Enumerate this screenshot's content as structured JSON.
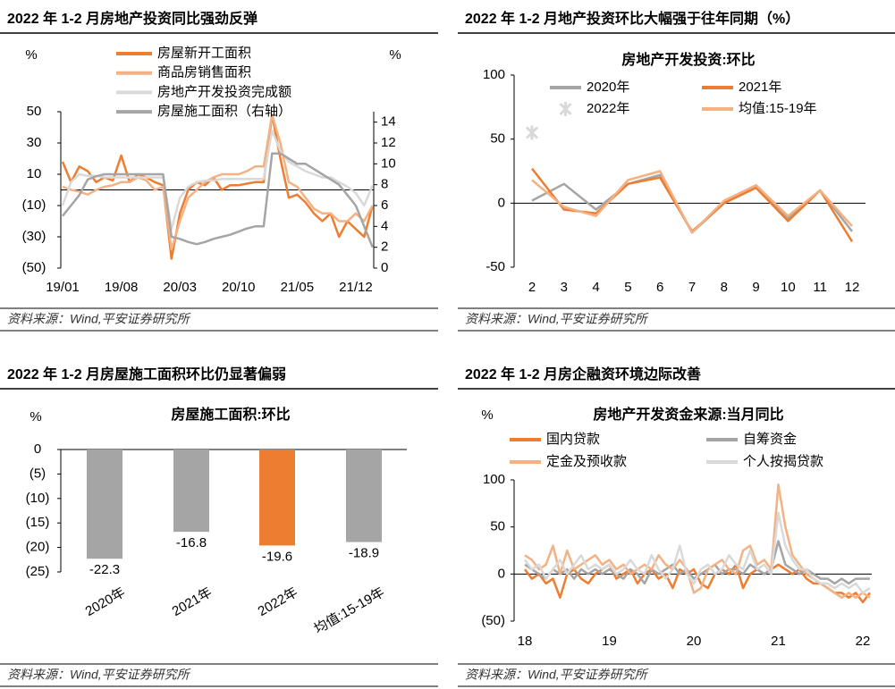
{
  "chart_data": [
    {
      "type": "line",
      "title": "2022 年 1-2 月房地产投资同比强劲反弹",
      "source": "资料来源：Wind,平安证券研究所",
      "ylabel": "%",
      "y2label": "%",
      "negative_label_color": "#e8413b",
      "categories": [
        "19/01",
        null,
        null,
        null,
        null,
        null,
        null,
        "19/08",
        null,
        null,
        null,
        null,
        null,
        null,
        "20/03",
        null,
        null,
        null,
        null,
        null,
        null,
        "20/10",
        null,
        null,
        null,
        null,
        null,
        null,
        "21/05",
        null,
        null,
        null,
        null,
        null,
        null,
        "21/12",
        null,
        null
      ],
      "series": [
        {
          "name": "房屋新开工面积",
          "color": "#ed7d31",
          "values": [
            18,
            5,
            15,
            12,
            5,
            8,
            6,
            22,
            5,
            10,
            8,
            5,
            3,
            -44,
            -15,
            0,
            5,
            3,
            8,
            0,
            3,
            3,
            4,
            5,
            5,
            48,
            20,
            -5,
            -3,
            -8,
            -15,
            -20,
            -15,
            -30,
            -20,
            -25,
            -30,
            -10
          ]
        },
        {
          "name": "商品房销售面积",
          "color": "#f4b183",
          "values": [
            2,
            0,
            -1,
            -3,
            0,
            2,
            3,
            5,
            5,
            8,
            6,
            0,
            2,
            -38,
            -20,
            -5,
            0,
            5,
            8,
            10,
            10,
            10,
            12,
            15,
            15,
            48,
            30,
            5,
            2,
            -5,
            -12,
            -15,
            -15,
            -20,
            -20,
            -15,
            -20,
            -10
          ]
        },
        {
          "name": "房地产开发投资完成额",
          "color": "#d9d9d9",
          "values": [
            -10,
            5,
            10,
            9,
            9,
            8,
            8,
            8,
            8,
            8,
            8,
            8,
            8,
            -25,
            -5,
            2,
            5,
            6,
            6,
            7,
            7,
            7,
            7,
            7,
            7,
            38,
            25,
            18,
            15,
            12,
            10,
            8,
            8,
            5,
            2,
            -2,
            -10,
            3
          ]
        },
        {
          "name": "房屋施工面积（右轴）",
          "color": "#a5a5a5",
          "axis": "y2",
          "values": [
            5,
            6,
            7,
            8.5,
            8.8,
            9,
            9,
            9,
            9,
            9,
            9,
            9,
            9,
            3,
            2.8,
            2.5,
            2.3,
            2.5,
            2.8,
            3,
            3.2,
            3.5,
            3.8,
            4,
            4,
            11,
            11,
            10.5,
            10,
            10,
            9.5,
            9,
            8.5,
            8,
            7,
            6,
            4,
            2
          ]
        }
      ],
      "ylim": [
        -50,
        50
      ],
      "yticks": [
        50,
        30,
        10,
        {
          "value": -10,
          "label": "(10)"
        },
        {
          "value": -30,
          "label": "(30)"
        },
        {
          "value": -50,
          "label": "(50)"
        }
      ],
      "y2lim": [
        0,
        15
      ],
      "y2ticks": [
        0,
        2,
        4,
        6,
        8,
        10,
        12,
        14
      ]
    },
    {
      "type": "line",
      "title": "2022 年 1-2 月地产投资环比大幅强于往年同期（%）",
      "subtitle": "房地产开发投资:环比",
      "source": "资料来源：Wind,平安证券研究所",
      "categories": [
        "2",
        "3",
        "4",
        "5",
        "6",
        "7",
        "8",
        "9",
        "10",
        "11",
        "12"
      ],
      "series": [
        {
          "name": "2020年",
          "color": "#a5a5a5",
          "values": [
            2,
            15,
            -5,
            15,
            22,
            -23,
            0,
            14,
            -12,
            10,
            -22
          ]
        },
        {
          "name": "2021年",
          "color": "#ed7d31",
          "values": [
            27,
            -5,
            -8,
            15,
            20,
            -22,
            0,
            12,
            -14,
            10,
            -30
          ]
        },
        {
          "name": "2022年",
          "color": "#d9d9d9",
          "marker": "x",
          "values": [
            55,
            null,
            null,
            null,
            null,
            null,
            null,
            null,
            null,
            null,
            null
          ]
        },
        {
          "name": "均值:15-19年",
          "color": "#f4b183",
          "values": [
            18,
            -3,
            -10,
            18,
            25,
            -23,
            2,
            14,
            -10,
            10,
            -18
          ]
        }
      ],
      "ylim": [
        -50,
        100
      ],
      "yticks": [
        100,
        50,
        0,
        -50
      ]
    },
    {
      "type": "bar",
      "title": "2022 年 1-2 月房屋施工面积环比仍显著偏弱",
      "subtitle": "房屋施工面积:环比",
      "source": "资料来源：Wind,平安证券研究所",
      "ylabel": "%",
      "negative_label_color": "#e8413b",
      "value_label_color": "#e8413b",
      "categories": [
        "2020年",
        "2021年",
        "2022年",
        "均值:15-19年"
      ],
      "values": [
        -22.3,
        -16.8,
        -19.6,
        -18.9
      ],
      "colors": [
        "#a5a5a5",
        "#a5a5a5",
        "#ed7d31",
        "#a5a5a5"
      ],
      "ylim": [
        -25,
        0
      ],
      "yticks": [
        0,
        {
          "value": -5,
          "label": "(5)"
        },
        {
          "value": -10,
          "label": "(10)"
        },
        {
          "value": -15,
          "label": "(15)"
        },
        {
          "value": -20,
          "label": "(20)"
        },
        {
          "value": -25,
          "label": "(25)"
        }
      ]
    },
    {
      "type": "line",
      "title": "2022 年 1-2 月房企融资环境边际改善",
      "subtitle": "房地产开发资金来源:当月同比",
      "source": "资料来源：Wind,平安证券研究所",
      "ylabel": "%",
      "negative_label_color": "#e8413b",
      "categories": [
        "18",
        null,
        null,
        null,
        null,
        null,
        null,
        null,
        null,
        null,
        null,
        null,
        "19",
        null,
        null,
        null,
        null,
        null,
        null,
        null,
        null,
        null,
        null,
        null,
        "20",
        null,
        null,
        null,
        null,
        null,
        null,
        null,
        null,
        null,
        null,
        null,
        "21",
        null,
        null,
        null,
        null,
        null,
        null,
        null,
        null,
        null,
        null,
        null,
        "22",
        null
      ],
      "series": [
        {
          "name": "国内贷款",
          "color": "#ed7d31",
          "values": [
            5,
            -5,
            0,
            -10,
            -5,
            -25,
            0,
            5,
            -5,
            -10,
            0,
            5,
            10,
            -5,
            0,
            5,
            -10,
            0,
            5,
            -5,
            0,
            -15,
            5,
            0,
            5,
            -10,
            -15,
            0,
            5,
            0,
            10,
            -15,
            0,
            5,
            0,
            5,
            10,
            5,
            0,
            5,
            -5,
            -10,
            -10,
            -15,
            -20,
            -20,
            -25,
            -20,
            -30,
            -20
          ]
        },
        {
          "name": "自筹资金",
          "color": "#a5a5a5",
          "values": [
            10,
            5,
            0,
            -5,
            5,
            0,
            5,
            -5,
            5,
            0,
            5,
            0,
            5,
            0,
            -5,
            5,
            0,
            -10,
            5,
            0,
            5,
            10,
            0,
            5,
            -5,
            0,
            5,
            10,
            0,
            5,
            5,
            0,
            10,
            5,
            0,
            5,
            35,
            10,
            5,
            0,
            5,
            0,
            -5,
            -5,
            -10,
            -5,
            -10,
            -5,
            -5,
            -5
          ]
        },
        {
          "name": "定金及预收款",
          "color": "#f4b183",
          "values": [
            20,
            15,
            5,
            10,
            30,
            0,
            25,
            5,
            10,
            15,
            20,
            10,
            15,
            5,
            10,
            0,
            5,
            10,
            5,
            20,
            10,
            5,
            15,
            5,
            -20,
            -15,
            5,
            10,
            15,
            5,
            0,
            25,
            30,
            10,
            15,
            5,
            95,
            50,
            20,
            10,
            0,
            -5,
            -10,
            -15,
            -20,
            -25,
            -20,
            -25,
            -20,
            -25
          ]
        },
        {
          "name": "个人按揭贷款",
          "color": "#d9d9d9",
          "values": [
            15,
            5,
            10,
            -5,
            5,
            15,
            0,
            10,
            20,
            5,
            10,
            5,
            10,
            0,
            5,
            15,
            5,
            0,
            20,
            5,
            -5,
            5,
            30,
            0,
            -10,
            5,
            10,
            0,
            5,
            20,
            10,
            5,
            25,
            5,
            10,
            0,
            65,
            30,
            15,
            5,
            5,
            -5,
            -10,
            -10,
            -15,
            -10,
            -15,
            -10,
            -20,
            -15
          ]
        }
      ],
      "ylim": [
        -50,
        100
      ],
      "yticks": [
        100,
        50,
        0,
        {
          "value": -50,
          "label": "(50)"
        }
      ]
    }
  ]
}
